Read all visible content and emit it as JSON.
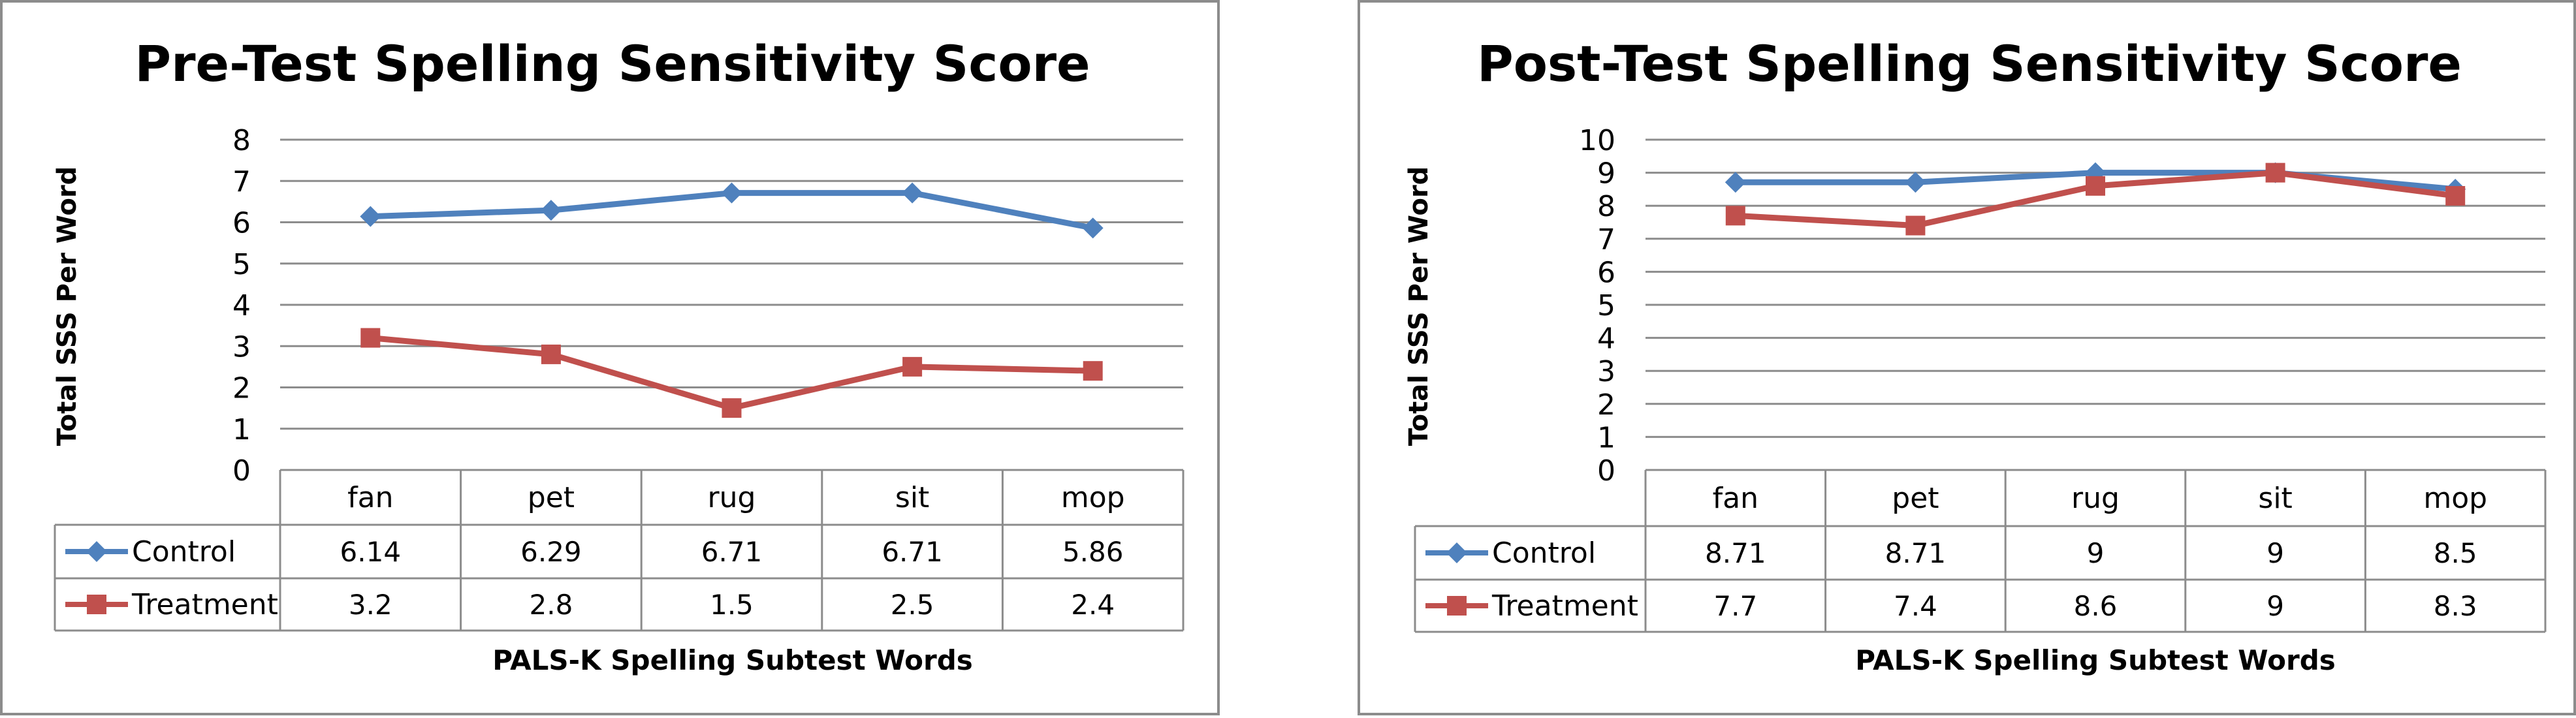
{
  "chart_data": [
    {
      "type": "line",
      "title": "Pre-Test Spelling Sensitivity Score",
      "xlabel": "PALS-K Spelling Subtest Words",
      "ylabel": "Total SSS Per Word",
      "categories": [
        "fan",
        "pet",
        "rug",
        "sit",
        "mop"
      ],
      "ylim": [
        0,
        8
      ],
      "yticks": [
        0,
        1,
        2,
        3,
        4,
        5,
        6,
        7,
        8
      ],
      "grid": true,
      "legend": "data-table",
      "series": [
        {
          "name": "Control",
          "values": [
            6.14,
            6.29,
            6.71,
            6.71,
            5.86
          ],
          "labels": [
            "6.14",
            "6.29",
            "6.71",
            "6.71",
            "5.86"
          ],
          "color": "#4f81bd",
          "marker": "diamond"
        },
        {
          "name": "Treatment",
          "values": [
            3.2,
            2.8,
            1.5,
            2.5,
            2.4
          ],
          "labels": [
            "3.2",
            "2.8",
            "1.5",
            "2.5",
            "2.4"
          ],
          "color": "#c0504d",
          "marker": "square"
        }
      ]
    },
    {
      "type": "line",
      "title": "Post-Test Spelling Sensitivity Score",
      "xlabel": "PALS-K Spelling Subtest Words",
      "ylabel": "Total SSS Per Word",
      "categories": [
        "fan",
        "pet",
        "rug",
        "sit",
        "mop"
      ],
      "ylim": [
        0,
        10
      ],
      "yticks": [
        0,
        1,
        2,
        3,
        4,
        5,
        6,
        7,
        8,
        9,
        10
      ],
      "grid": true,
      "legend": "data-table",
      "series": [
        {
          "name": "Control",
          "values": [
            8.71,
            8.71,
            9,
            9,
            8.5
          ],
          "labels": [
            "8.71",
            "8.71",
            "9",
            "9",
            "8.5"
          ],
          "color": "#4f81bd",
          "marker": "diamond"
        },
        {
          "name": "Treatment",
          "values": [
            7.7,
            7.4,
            8.6,
            9,
            8.3
          ],
          "labels": [
            "7.7",
            "7.4",
            "8.6",
            "9",
            "8.3"
          ],
          "color": "#c0504d",
          "marker": "square"
        }
      ]
    }
  ]
}
